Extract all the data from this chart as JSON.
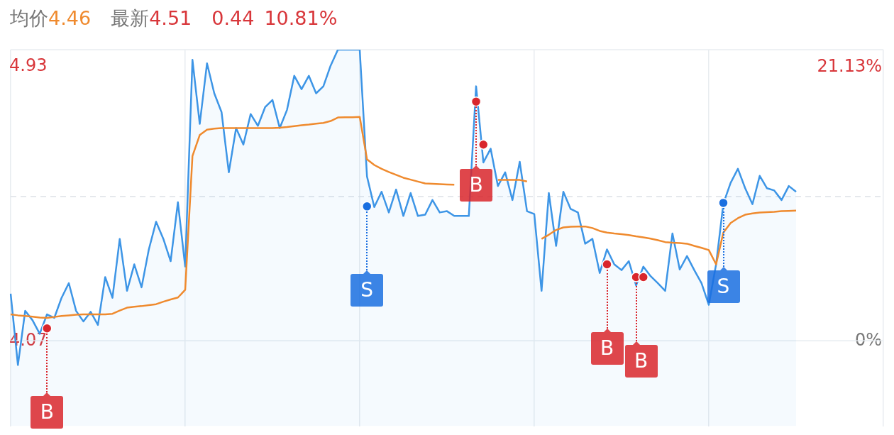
{
  "chart_data": {
    "type": "line",
    "categories": [
      null,
      null,
      null,
      null,
      null,
      null,
      null,
      null,
      null,
      null,
      null,
      null,
      null,
      null,
      null,
      null,
      null,
      null,
      null,
      null,
      null,
      null,
      null,
      null,
      null,
      null,
      null,
      null,
      null,
      null,
      null,
      null,
      null,
      null,
      null,
      null,
      null,
      null,
      null,
      null,
      null,
      null,
      null,
      null,
      null,
      null,
      null,
      null,
      null,
      null,
      null,
      null,
      null,
      null,
      null,
      null,
      null,
      null,
      null,
      null,
      null,
      null,
      null,
      null,
      null,
      null,
      null,
      null,
      null,
      null,
      null,
      null,
      null,
      null,
      null,
      null,
      null,
      null,
      null,
      null,
      null,
      null,
      null,
      null,
      null,
      null,
      null,
      null,
      null,
      null,
      null,
      null,
      null,
      null,
      null,
      null,
      null,
      null,
      null,
      null,
      null,
      null,
      null,
      null,
      null,
      null,
      null,
      null,
      null,
      null,
      null,
      null,
      null,
      null,
      null,
      null,
      null,
      null,
      null,
      null,
      null
    ],
    "ylim": [
      3.802,
      4.984
    ],
    "yticks": [
      4.07,
      4.93
    ],
    "y2lim": [
      -6.58,
      22.46
    ],
    "y2ticks": [
      {
        "value": 0,
        "label": "0%"
      },
      {
        "value": 21.13,
        "label": "21.13%"
      }
    ],
    "grid": "x",
    "legend": false,
    "ref_lines": [
      {
        "axis": "y",
        "value": 4.07,
        "color": "#e6ebf0"
      },
      {
        "axis": "y",
        "value": 4.523,
        "color": "#dde1e6",
        "line_style": "dashed"
      }
    ],
    "annotations": [
      "均价",
      "4.46",
      "最新",
      "4.51",
      "0.44",
      "10.81%"
    ],
    "series": [
      {
        "type": "area",
        "color": "#3d95e6",
        "values": [
          4.218,
          3.994,
          4.164,
          4.135,
          4.092,
          4.153,
          4.142,
          4.205,
          4.251,
          4.164,
          4.131,
          4.161,
          4.12,
          4.27,
          4.205,
          4.39,
          4.227,
          4.31,
          4.238,
          4.357,
          4.444,
          4.39,
          4.32,
          4.505,
          4.303,
          4.952,
          4.751,
          4.941,
          4.847,
          4.788,
          4.599,
          4.738,
          4.686,
          4.782,
          4.745,
          4.804,
          4.826,
          4.738,
          4.795,
          4.902,
          4.86,
          4.902,
          4.847,
          4.869,
          4.934,
          4.984,
          4.984,
          4.984,
          4.984,
          4.586,
          4.49,
          4.538,
          4.473,
          4.545,
          4.462,
          4.534,
          4.462,
          4.466,
          4.512,
          4.473,
          4.477,
          4.462,
          4.462,
          4.462,
          4.869,
          4.63,
          4.673,
          4.556,
          4.599,
          4.512,
          4.632,
          4.477,
          4.468,
          4.227,
          4.534,
          4.368,
          4.538,
          4.484,
          4.473,
          4.375,
          4.39,
          4.283,
          4.357,
          4.31,
          4.292,
          4.32,
          4.244,
          4.303,
          4.273,
          4.251,
          4.227,
          4.407,
          4.294,
          4.336,
          4.292,
          4.251,
          4.183,
          4.31,
          4.501,
          4.566,
          4.61,
          4.549,
          4.499,
          4.588,
          4.549,
          4.542,
          4.512,
          4.556,
          4.538,
          null,
          null,
          null,
          null,
          null,
          null,
          null,
          null,
          null,
          null,
          null,
          null
        ]
      },
      {
        "type": "line",
        "color": "#ef8a2e",
        "values": [
          4.153,
          4.15,
          4.148,
          4.146,
          4.143,
          4.142,
          4.145,
          4.148,
          4.15,
          4.152,
          4.153,
          4.153,
          4.153,
          4.153,
          4.155,
          4.165,
          4.174,
          4.177,
          4.179,
          4.182,
          4.185,
          4.193,
          4.2,
          4.206,
          4.23,
          4.65,
          4.716,
          4.733,
          4.736,
          4.738,
          4.738,
          4.738,
          4.738,
          4.738,
          4.738,
          4.738,
          4.738,
          4.739,
          4.741,
          4.744,
          4.747,
          4.749,
          4.752,
          4.754,
          4.76,
          4.771,
          4.772,
          4.772,
          4.773,
          4.64,
          4.622,
          4.61,
          4.6,
          4.591,
          4.582,
          4.576,
          4.57,
          4.564,
          4.563,
          4.562,
          4.561,
          4.56,
          null,
          null,
          null,
          null,
          null,
          4.575,
          4.575,
          4.575,
          4.575,
          4.57,
          null,
          4.39,
          4.403,
          4.418,
          4.426,
          4.428,
          4.429,
          4.429,
          4.424,
          4.415,
          4.41,
          4.407,
          4.405,
          4.402,
          4.398,
          4.395,
          4.391,
          4.386,
          4.38,
          4.378,
          4.377,
          4.375,
          4.368,
          4.362,
          4.355,
          4.31,
          4.41,
          4.44,
          4.455,
          4.466,
          4.47,
          4.473,
          4.474,
          4.475,
          4.477,
          4.478,
          4.479,
          null,
          null,
          null,
          null,
          null,
          null,
          null,
          null,
          null,
          null,
          null,
          null
        ]
      },
      {
        "type": "scatter",
        "marker": "circle",
        "color": "#d9262c",
        "values": [
          null,
          null,
          null,
          null,
          null,
          4.109,
          null,
          null,
          null,
          null,
          null,
          null,
          null,
          null,
          null,
          null,
          null,
          null,
          null,
          null,
          null,
          null,
          null,
          null,
          null,
          null,
          null,
          null,
          null,
          null,
          null,
          null,
          null,
          null,
          null,
          null,
          null,
          null,
          null,
          null,
          null,
          null,
          null,
          null,
          null,
          null,
          null,
          null,
          null,
          null,
          null,
          null,
          null,
          null,
          null,
          null,
          null,
          null,
          null,
          null,
          null,
          null,
          null,
          null,
          4.821,
          4.686,
          null,
          null,
          null,
          null,
          null,
          null,
          null,
          null,
          null,
          null,
          null,
          null,
          null,
          null,
          null,
          null,
          4.31,
          null,
          null,
          null,
          4.27,
          4.27,
          null,
          null,
          null,
          null,
          null,
          null,
          null,
          null,
          null,
          null,
          null,
          null,
          null,
          null,
          null,
          null,
          null,
          null,
          null,
          null,
          null,
          null,
          null,
          null,
          null,
          null,
          null,
          null,
          null,
          null,
          null,
          null,
          null
        ],
        "value_labels": [
          null,
          null,
          null,
          null,
          null,
          "B",
          null,
          null,
          null,
          null,
          null,
          null,
          null,
          null,
          null,
          null,
          null,
          null,
          null,
          null,
          null,
          null,
          null,
          null,
          null,
          null,
          null,
          null,
          null,
          null,
          null,
          null,
          null,
          null,
          null,
          null,
          null,
          null,
          null,
          null,
          null,
          null,
          null,
          null,
          null,
          null,
          null,
          null,
          null,
          null,
          null,
          null,
          null,
          null,
          null,
          null,
          null,
          null,
          null,
          null,
          null,
          null,
          null,
          null,
          "B",
          null,
          null,
          null,
          null,
          null,
          null,
          null,
          null,
          null,
          null,
          null,
          null,
          null,
          null,
          null,
          null,
          null,
          "B",
          null,
          null,
          null,
          "B",
          null,
          null,
          null,
          null,
          null,
          null,
          null,
          null,
          null,
          null,
          null,
          null,
          null,
          null,
          null,
          null,
          null,
          null,
          null,
          null,
          null,
          null,
          null,
          null,
          null,
          null,
          null,
          null,
          null,
          null,
          null,
          null,
          null,
          null
        ]
      },
      {
        "type": "scatter",
        "marker": "circle",
        "color": "#1a6fe0",
        "values": [
          null,
          null,
          null,
          null,
          null,
          null,
          null,
          null,
          null,
          null,
          null,
          null,
          null,
          null,
          null,
          null,
          null,
          null,
          null,
          null,
          null,
          null,
          null,
          null,
          null,
          null,
          null,
          null,
          null,
          null,
          null,
          null,
          null,
          null,
          null,
          null,
          null,
          null,
          null,
          null,
          null,
          null,
          null,
          null,
          null,
          null,
          null,
          null,
          null,
          4.492,
          null,
          null,
          null,
          null,
          null,
          null,
          null,
          null,
          null,
          null,
          null,
          null,
          null,
          null,
          null,
          null,
          null,
          null,
          null,
          null,
          null,
          null,
          null,
          null,
          null,
          null,
          null,
          null,
          null,
          null,
          null,
          null,
          null,
          null,
          null,
          null,
          null,
          null,
          null,
          null,
          null,
          null,
          null,
          null,
          null,
          null,
          null,
          null,
          4.503,
          null,
          null,
          null,
          null,
          null,
          null,
          null,
          null,
          null,
          null,
          null,
          null,
          null,
          null,
          null,
          null,
          null,
          null,
          null,
          null,
          null,
          null
        ],
        "value_labels": [
          null,
          null,
          null,
          null,
          null,
          null,
          null,
          null,
          null,
          null,
          null,
          null,
          null,
          null,
          null,
          null,
          null,
          null,
          null,
          null,
          null,
          null,
          null,
          null,
          null,
          null,
          null,
          null,
          null,
          null,
          null,
          null,
          null,
          null,
          null,
          null,
          null,
          null,
          null,
          null,
          null,
          null,
          null,
          null,
          null,
          null,
          null,
          null,
          null,
          "S",
          null,
          null,
          null,
          null,
          null,
          null,
          null,
          null,
          null,
          null,
          null,
          null,
          null,
          null,
          null,
          null,
          null,
          null,
          null,
          null,
          null,
          null,
          null,
          null,
          null,
          null,
          null,
          null,
          null,
          null,
          null,
          null,
          null,
          null,
          null,
          null,
          null,
          null,
          null,
          null,
          null,
          null,
          null,
          null,
          null,
          null,
          null,
          null,
          "S",
          null,
          null,
          null,
          null,
          null,
          null,
          null,
          null,
          null,
          null,
          null,
          null,
          null,
          null,
          null,
          null,
          null,
          null,
          null,
          null,
          null,
          null
        ]
      }
    ]
  }
}
